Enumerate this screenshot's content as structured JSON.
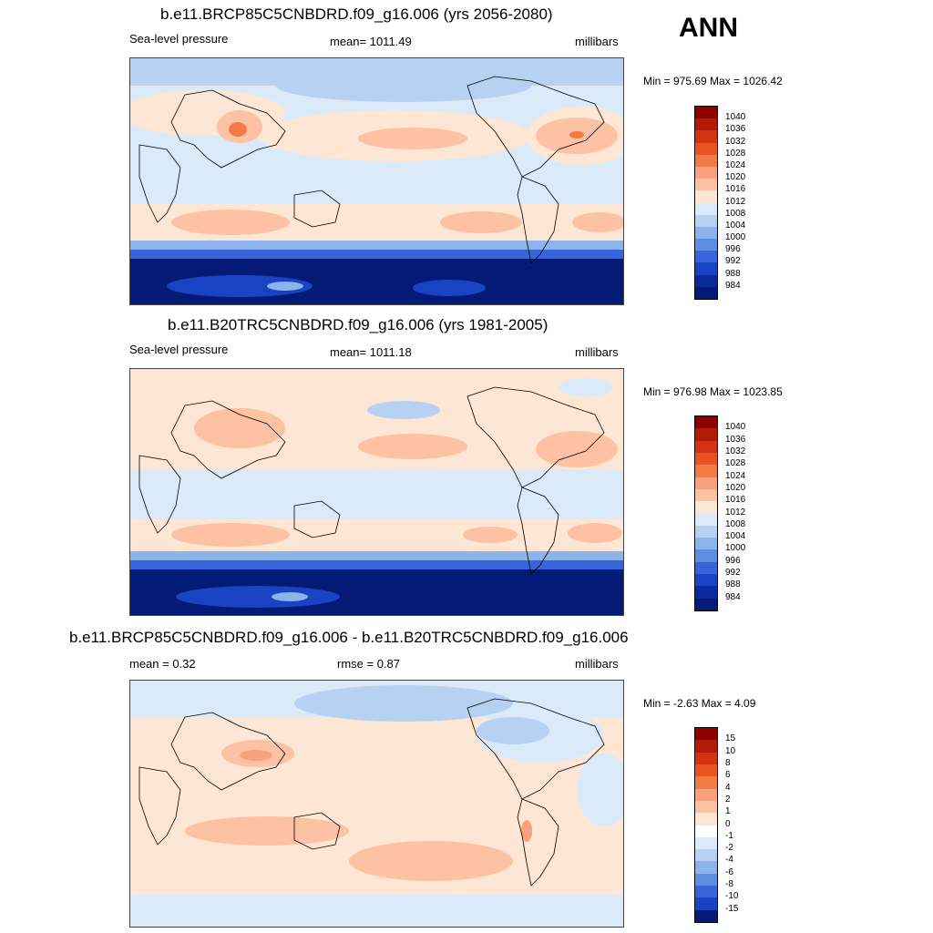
{
  "figure_label": "ANN",
  "chart_data": [
    {
      "type": "heatmap",
      "title": "b.e11.BRCP85C5CNBDRD.f09_g16.006 (yrs 2056-2080)",
      "left_label": "Sea-level pressure",
      "center_label": "mean= 1011.49",
      "right_label": "millibars",
      "minmax": "Min = 975.69 Max = 1026.42",
      "min": 975.69,
      "max": 1026.42,
      "colorbar_levels": [
        "1040",
        "1036",
        "1032",
        "1028",
        "1024",
        "1020",
        "1016",
        "1012",
        "1008",
        "1004",
        "1000",
        "996",
        "992",
        "988",
        "984"
      ],
      "colorbar_colors": [
        "#8b0000",
        "#b01a06",
        "#d33312",
        "#e8531f",
        "#f27a45",
        "#f9a07e",
        "#fdc2a3",
        "#fde6d3",
        "#dbeaf9",
        "#b7d1f3",
        "#8cb3ec",
        "#5e8ee2",
        "#3565d8",
        "#1a43c4",
        "#0a2a9c",
        "#031a76"
      ]
    },
    {
      "type": "heatmap",
      "title": "b.e11.B20TRC5CNBDRD.f09_g16.006 (yrs 1981-2005)",
      "left_label": "Sea-level pressure",
      "center_label": "mean= 1011.18",
      "right_label": "millibars",
      "minmax": "Min = 976.98 Max = 1023.85",
      "min": 976.98,
      "max": 1023.85,
      "colorbar_levels": [
        "1040",
        "1036",
        "1032",
        "1028",
        "1024",
        "1020",
        "1016",
        "1012",
        "1008",
        "1004",
        "1000",
        "996",
        "992",
        "988",
        "984"
      ],
      "colorbar_colors": [
        "#8b0000",
        "#b01a06",
        "#d33312",
        "#e8531f",
        "#f27a45",
        "#f9a07e",
        "#fdc2a3",
        "#fde6d3",
        "#dbeaf9",
        "#b7d1f3",
        "#8cb3ec",
        "#5e8ee2",
        "#3565d8",
        "#1a43c4",
        "#0a2a9c",
        "#031a76"
      ]
    },
    {
      "type": "heatmap",
      "title": "b.e11.BRCP85C5CNBDRD.f09_g16.006 - b.e11.B20TRC5CNBDRD.f09_g16.006",
      "left_label": "mean =   0.32",
      "center_label": "rmse =   0.87",
      "right_label": "millibars",
      "minmax": "Min =  -2.63 Max =   4.09",
      "min": -2.63,
      "max": 4.09,
      "colorbar_levels": [
        "15",
        "10",
        "8",
        "6",
        "4",
        "2",
        "1",
        "0",
        "-1",
        "-2",
        "-4",
        "-6",
        "-8",
        "-10",
        "-15"
      ],
      "colorbar_colors": [
        "#8b0000",
        "#b01a06",
        "#d33312",
        "#e8531f",
        "#f27a45",
        "#f9a07e",
        "#fdc2a3",
        "#fde6d3",
        "#ffffff",
        "#dbeaf9",
        "#b7d1f3",
        "#8cb3ec",
        "#5e8ee2",
        "#3565d8",
        "#1a43c4",
        "#031a76"
      ]
    }
  ]
}
